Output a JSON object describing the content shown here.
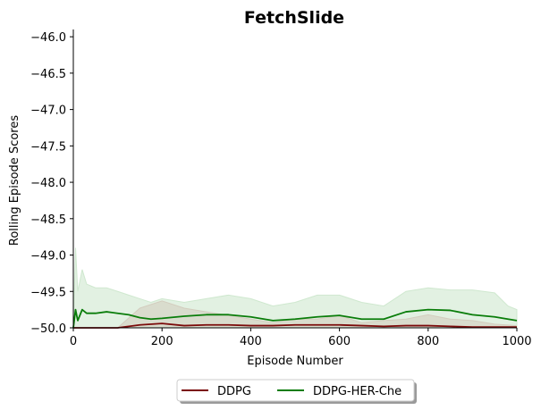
{
  "chart_data": {
    "type": "line",
    "title": "FetchSlide",
    "xlabel": "Episode Number",
    "ylabel": "Rolling Episode Scores",
    "xlim": [
      0,
      1000
    ],
    "ylim": [
      -50.0,
      -45.9
    ],
    "xticks": [
      "0",
      "200",
      "400",
      "600",
      "800",
      "1000"
    ],
    "xtick_values": [
      0,
      200,
      400,
      600,
      800,
      1000
    ],
    "yticks": [
      "−50.0",
      "−49.5",
      "−49.0",
      "−48.5",
      "−48.0",
      "−47.5",
      "−47.0",
      "−46.5",
      "−46.0"
    ],
    "ytick_values": [
      -50.0,
      -49.5,
      -49.0,
      -48.5,
      -48.0,
      -47.5,
      -47.0,
      -46.5,
      -46.0
    ],
    "grid": false,
    "legend_position": "bottom-center-outside",
    "series": [
      {
        "name": "DDPG",
        "color": "#7b0a0a",
        "band_color": "#d9a6a6",
        "x": [
          0,
          50,
          100,
          150,
          200,
          250,
          300,
          350,
          400,
          450,
          500,
          550,
          600,
          650,
          700,
          750,
          800,
          850,
          900,
          950,
          1000
        ],
        "mean": [
          -50.0,
          -50.0,
          -50.0,
          -49.96,
          -49.94,
          -49.97,
          -49.96,
          -49.96,
          -49.97,
          -49.97,
          -49.96,
          -49.96,
          -49.96,
          -49.97,
          -49.98,
          -49.97,
          -49.97,
          -49.98,
          -49.99,
          -49.99,
          -49.99
        ],
        "upper": [
          -50.0,
          -50.0,
          -50.0,
          -49.73,
          -49.63,
          -49.73,
          -49.78,
          -49.83,
          -49.88,
          -49.93,
          -49.88,
          -49.88,
          -49.83,
          -49.93,
          -49.9,
          -49.88,
          -49.82,
          -49.88,
          -49.9,
          -49.95,
          -49.97
        ],
        "lower": [
          -50.0,
          -50.0,
          -50.0,
          -50.0,
          -50.0,
          -50.0,
          -50.0,
          -50.0,
          -50.0,
          -50.0,
          -50.0,
          -50.0,
          -50.0,
          -50.0,
          -50.0,
          -50.0,
          -50.0,
          -50.0,
          -50.0,
          -50.0,
          -50.0
        ]
      },
      {
        "name": "DDPG-HER-Che",
        "color": "#0a7d0a",
        "band_color": "#cfe8cf",
        "x": [
          0,
          5,
          10,
          20,
          30,
          50,
          75,
          100,
          125,
          150,
          175,
          200,
          250,
          300,
          350,
          400,
          450,
          500,
          550,
          600,
          650,
          700,
          750,
          800,
          850,
          900,
          950,
          980,
          1000
        ],
        "mean": [
          -50.0,
          -49.75,
          -49.9,
          -49.75,
          -49.8,
          -49.8,
          -49.78,
          -49.8,
          -49.82,
          -49.86,
          -49.88,
          -49.87,
          -49.84,
          -49.82,
          -49.82,
          -49.85,
          -49.9,
          -49.88,
          -49.85,
          -49.83,
          -49.88,
          -49.88,
          -49.78,
          -49.75,
          -49.76,
          -49.82,
          -49.85,
          -49.88,
          -49.9
        ],
        "upper": [
          -50.0,
          -48.9,
          -49.5,
          -49.2,
          -49.4,
          -49.45,
          -49.45,
          -49.5,
          -49.55,
          -49.6,
          -49.65,
          -49.6,
          -49.65,
          -49.6,
          -49.55,
          -49.6,
          -49.7,
          -49.65,
          -49.55,
          -49.55,
          -49.65,
          -49.7,
          -49.5,
          -49.45,
          -49.48,
          -49.48,
          -49.52,
          -49.7,
          -49.75
        ],
        "lower": [
          -50.0,
          -50.0,
          -50.0,
          -50.0,
          -50.0,
          -50.0,
          -50.0,
          -50.0,
          -50.0,
          -50.0,
          -50.0,
          -50.0,
          -50.0,
          -50.0,
          -50.0,
          -50.0,
          -50.0,
          -50.0,
          -50.0,
          -50.0,
          -50.0,
          -50.0,
          -50.0,
          -50.0,
          -50.0,
          -50.0,
          -50.0,
          -50.0,
          -50.0
        ]
      }
    ]
  }
}
